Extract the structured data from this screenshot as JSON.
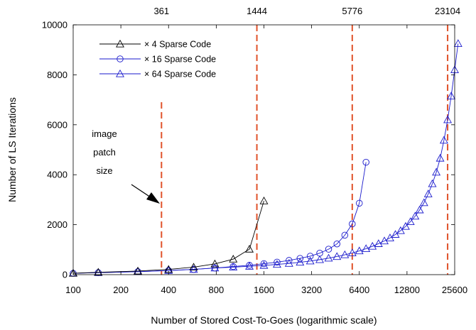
{
  "chart_data": {
    "type": "line",
    "x_scale": "log2",
    "xlim": [
      100,
      25600
    ],
    "ylim": [
      0,
      10000
    ],
    "x_ticks": [
      100,
      200,
      400,
      800,
      1600,
      3200,
      6400,
      12800,
      25600
    ],
    "x_tick_labels": [
      "100",
      "200",
      "400",
      "800",
      "1600",
      "3200",
      "6400",
      "12800",
      "25600"
    ],
    "y_ticks": [
      0,
      2000,
      4000,
      6000,
      8000,
      10000
    ],
    "y_tick_labels": [
      "0",
      "2000",
      "4000",
      "6000",
      "8000",
      "10000"
    ],
    "xlabel": "Number of Stored Cost-To-Goes (logarithmic scale)",
    "ylabel": "Number of LS Iterations",
    "grid": false,
    "legend_position": "top-left",
    "vlines": [
      {
        "x": 361,
        "label": "361"
      },
      {
        "x": 1444,
        "label": "1444"
      },
      {
        "x": 5776,
        "label": "5776"
      },
      {
        "x": 23104,
        "label": "23104"
      }
    ],
    "annotation": {
      "lines": [
        "image",
        "patch",
        "size"
      ],
      "target_x": 361
    },
    "series": [
      {
        "name": "× 4 Sparse Code",
        "color": "#000000",
        "marker": "triangle",
        "points": [
          [
            100,
            55
          ],
          [
            144,
            95
          ],
          [
            256,
            145
          ],
          [
            400,
            210
          ],
          [
            576,
            300
          ],
          [
            784,
            430
          ],
          [
            1024,
            620
          ],
          [
            1296,
            1020
          ],
          [
            1600,
            2950
          ]
        ]
      },
      {
        "name": "× 16 Sparse Code",
        "color": "#1a1acc",
        "marker": "circle",
        "points": [
          [
            100,
            55
          ],
          [
            144,
            80
          ],
          [
            256,
            120
          ],
          [
            400,
            165
          ],
          [
            576,
            210
          ],
          [
            784,
            265
          ],
          [
            1024,
            325
          ],
          [
            1296,
            375
          ],
          [
            1600,
            440
          ],
          [
            1936,
            500
          ],
          [
            2304,
            570
          ],
          [
            2704,
            650
          ],
          [
            3136,
            740
          ],
          [
            3600,
            860
          ],
          [
            4096,
            1020
          ],
          [
            4624,
            1230
          ],
          [
            5184,
            1580
          ],
          [
            5776,
            2030
          ],
          [
            6400,
            2860
          ],
          [
            7056,
            4500
          ]
        ]
      },
      {
        "name": "× 64 Sparse Code",
        "color": "#1a1acc",
        "marker": "triangle",
        "points": [
          [
            100,
            55
          ],
          [
            144,
            80
          ],
          [
            256,
            120
          ],
          [
            400,
            165
          ],
          [
            576,
            210
          ],
          [
            784,
            265
          ],
          [
            1024,
            300
          ],
          [
            1296,
            335
          ],
          [
            1600,
            370
          ],
          [
            1936,
            410
          ],
          [
            2304,
            450
          ],
          [
            2704,
            495
          ],
          [
            3136,
            545
          ],
          [
            3600,
            600
          ],
          [
            4096,
            660
          ],
          [
            4624,
            725
          ],
          [
            5184,
            795
          ],
          [
            5776,
            870
          ],
          [
            6400,
            950
          ],
          [
            7056,
            1040
          ],
          [
            7744,
            1135
          ],
          [
            8464,
            1240
          ],
          [
            9216,
            1350
          ],
          [
            10000,
            1470
          ],
          [
            10816,
            1610
          ],
          [
            11664,
            1760
          ],
          [
            12544,
            1930
          ],
          [
            13456,
            2120
          ],
          [
            14400,
            2340
          ],
          [
            15376,
            2590
          ],
          [
            16384,
            2880
          ],
          [
            17424,
            3230
          ],
          [
            18496,
            3640
          ],
          [
            19600,
            4100
          ],
          [
            20736,
            4660
          ],
          [
            21904,
            5380
          ],
          [
            23104,
            6200
          ],
          [
            24336,
            7150
          ],
          [
            25600,
            8200
          ],
          [
            26896,
            9250
          ]
        ]
      }
    ]
  }
}
